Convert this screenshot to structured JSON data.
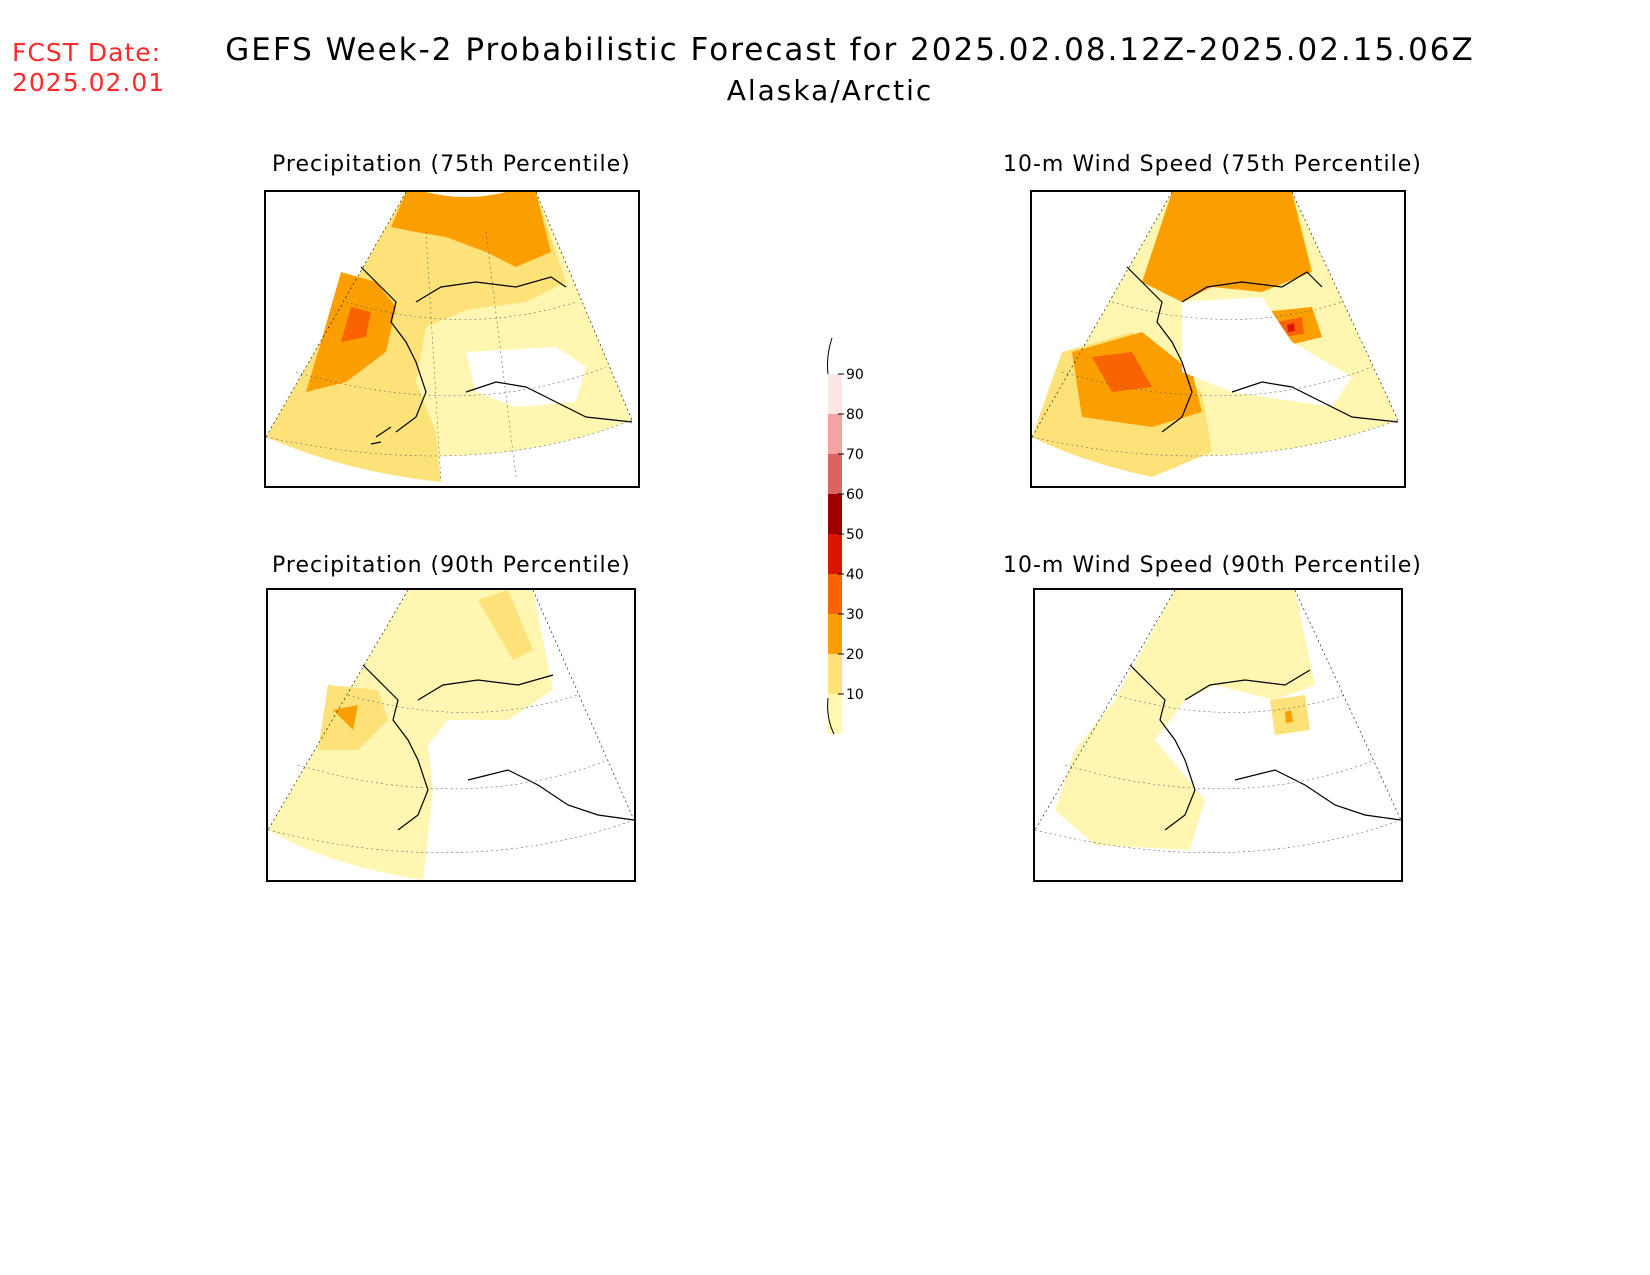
{
  "header": {
    "fcst_label": "FCST Date:",
    "fcst_date": "2025.02.01",
    "title": "GEFS Week-2 Probabilistic Forecast for 2025.02.08.12Z-2025.02.15.06Z",
    "subtitle": "Alaska/Arctic"
  },
  "panels": [
    {
      "title": "Precipitation (75th Percentile)"
    },
    {
      "title": "10-m Wind Speed (75th Percentile)"
    },
    {
      "title": "Precipitation (90th Percentile)"
    },
    {
      "title": "10-m Wind Speed (90th Percentile)"
    }
  ],
  "colorbar": {
    "labels": [
      "90",
      "80",
      "70",
      "60",
      "50",
      "40",
      "30",
      "20",
      "10"
    ],
    "colors": [
      "#fde6e6",
      "#f2a4a4",
      "#d96464",
      "#9e0000",
      "#dc1400",
      "#fa6400",
      "#fb9f00",
      "#fde27a",
      "#fff8b0"
    ]
  }
}
